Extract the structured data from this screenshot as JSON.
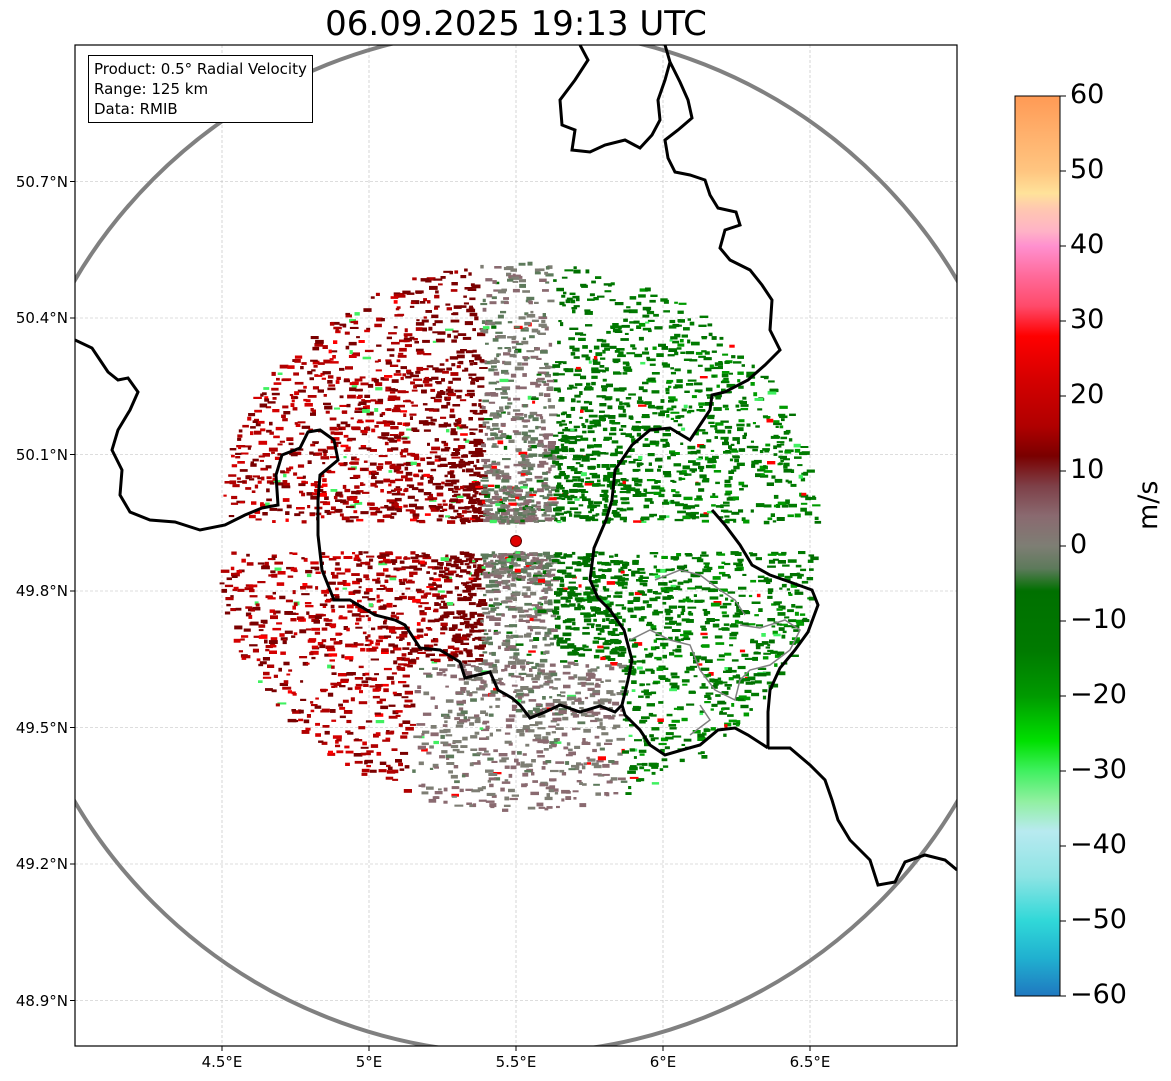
{
  "title": "06.09.2025 19:13 UTC",
  "info": {
    "product": "Product: 0.5° Radial Velocity",
    "range": "Range: 125 km",
    "data": "Data: RMIB"
  },
  "map": {
    "lon_range": [
      4.0,
      7.0
    ],
    "lat_range": [
      48.8,
      51.0
    ],
    "lon_ticks": [
      {
        "value": 4.5,
        "label": "4.5°E"
      },
      {
        "value": 5.0,
        "label": "5°E"
      },
      {
        "value": 5.5,
        "label": "5.5°E"
      },
      {
        "value": 6.0,
        "label": "6°E"
      },
      {
        "value": 6.5,
        "label": "6.5°E"
      }
    ],
    "lat_ticks": [
      {
        "value": 50.7,
        "label": "50.7°N"
      },
      {
        "value": 50.4,
        "label": "50.4°N"
      },
      {
        "value": 50.1,
        "label": "50.1°N"
      },
      {
        "value": 49.8,
        "label": "49.8°N"
      },
      {
        "value": 49.5,
        "label": "49.5°N"
      },
      {
        "value": 49.2,
        "label": "49.2°N"
      },
      {
        "value": 48.9,
        "label": "48.9°N"
      }
    ],
    "radar_site": {
      "lon": 5.5,
      "lat": 49.91,
      "color": "#e00000"
    },
    "range_km": 125,
    "grid": true
  },
  "colorbar": {
    "unit": "m/s",
    "range": [
      -60,
      60
    ],
    "ticks": [
      {
        "value": 60,
        "label": "60"
      },
      {
        "value": 50,
        "label": "50"
      },
      {
        "value": 40,
        "label": "40"
      },
      {
        "value": 30,
        "label": "30"
      },
      {
        "value": 20,
        "label": "20"
      },
      {
        "value": 10,
        "label": "10"
      },
      {
        "value": 0,
        "label": "0"
      },
      {
        "value": -10,
        "label": "−10"
      },
      {
        "value": -20,
        "label": "−20"
      },
      {
        "value": -30,
        "label": "−30"
      },
      {
        "value": -40,
        "label": "−40"
      },
      {
        "value": -50,
        "label": "−50"
      },
      {
        "value": -60,
        "label": "−60"
      }
    ],
    "stops": [
      {
        "v": 60,
        "c": "#ff9a55"
      },
      {
        "v": 55,
        "c": "#ffb06c"
      },
      {
        "v": 50,
        "c": "#ffc580"
      },
      {
        "v": 47,
        "c": "#ffe29a"
      },
      {
        "v": 45,
        "c": "#ffc8b0"
      },
      {
        "v": 42,
        "c": "#ffb3c6"
      },
      {
        "v": 40,
        "c": "#ff90cf"
      },
      {
        "v": 36,
        "c": "#ff6a9a"
      },
      {
        "v": 32,
        "c": "#ff4a6a"
      },
      {
        "v": 28,
        "c": "#ff0000"
      },
      {
        "v": 22,
        "c": "#d40000"
      },
      {
        "v": 16,
        "c": "#b00000"
      },
      {
        "v": 12,
        "c": "#7a0000"
      },
      {
        "v": 8,
        "c": "#7e4048"
      },
      {
        "v": 4,
        "c": "#8a6a70"
      },
      {
        "v": 0,
        "c": "#7e7e74"
      },
      {
        "v": -3,
        "c": "#5d7a5b"
      },
      {
        "v": -6,
        "c": "#007000"
      },
      {
        "v": -14,
        "c": "#007a00"
      },
      {
        "v": -20,
        "c": "#009a00"
      },
      {
        "v": -26,
        "c": "#00e000"
      },
      {
        "v": -30,
        "c": "#40f060"
      },
      {
        "v": -34,
        "c": "#90f0a0"
      },
      {
        "v": -38,
        "c": "#b8eaf0"
      },
      {
        "v": -44,
        "c": "#8ee4e4"
      },
      {
        "v": -50,
        "c": "#30d8d8"
      },
      {
        "v": -55,
        "c": "#20b0d0"
      },
      {
        "v": -60,
        "c": "#1f78c0"
      }
    ]
  }
}
